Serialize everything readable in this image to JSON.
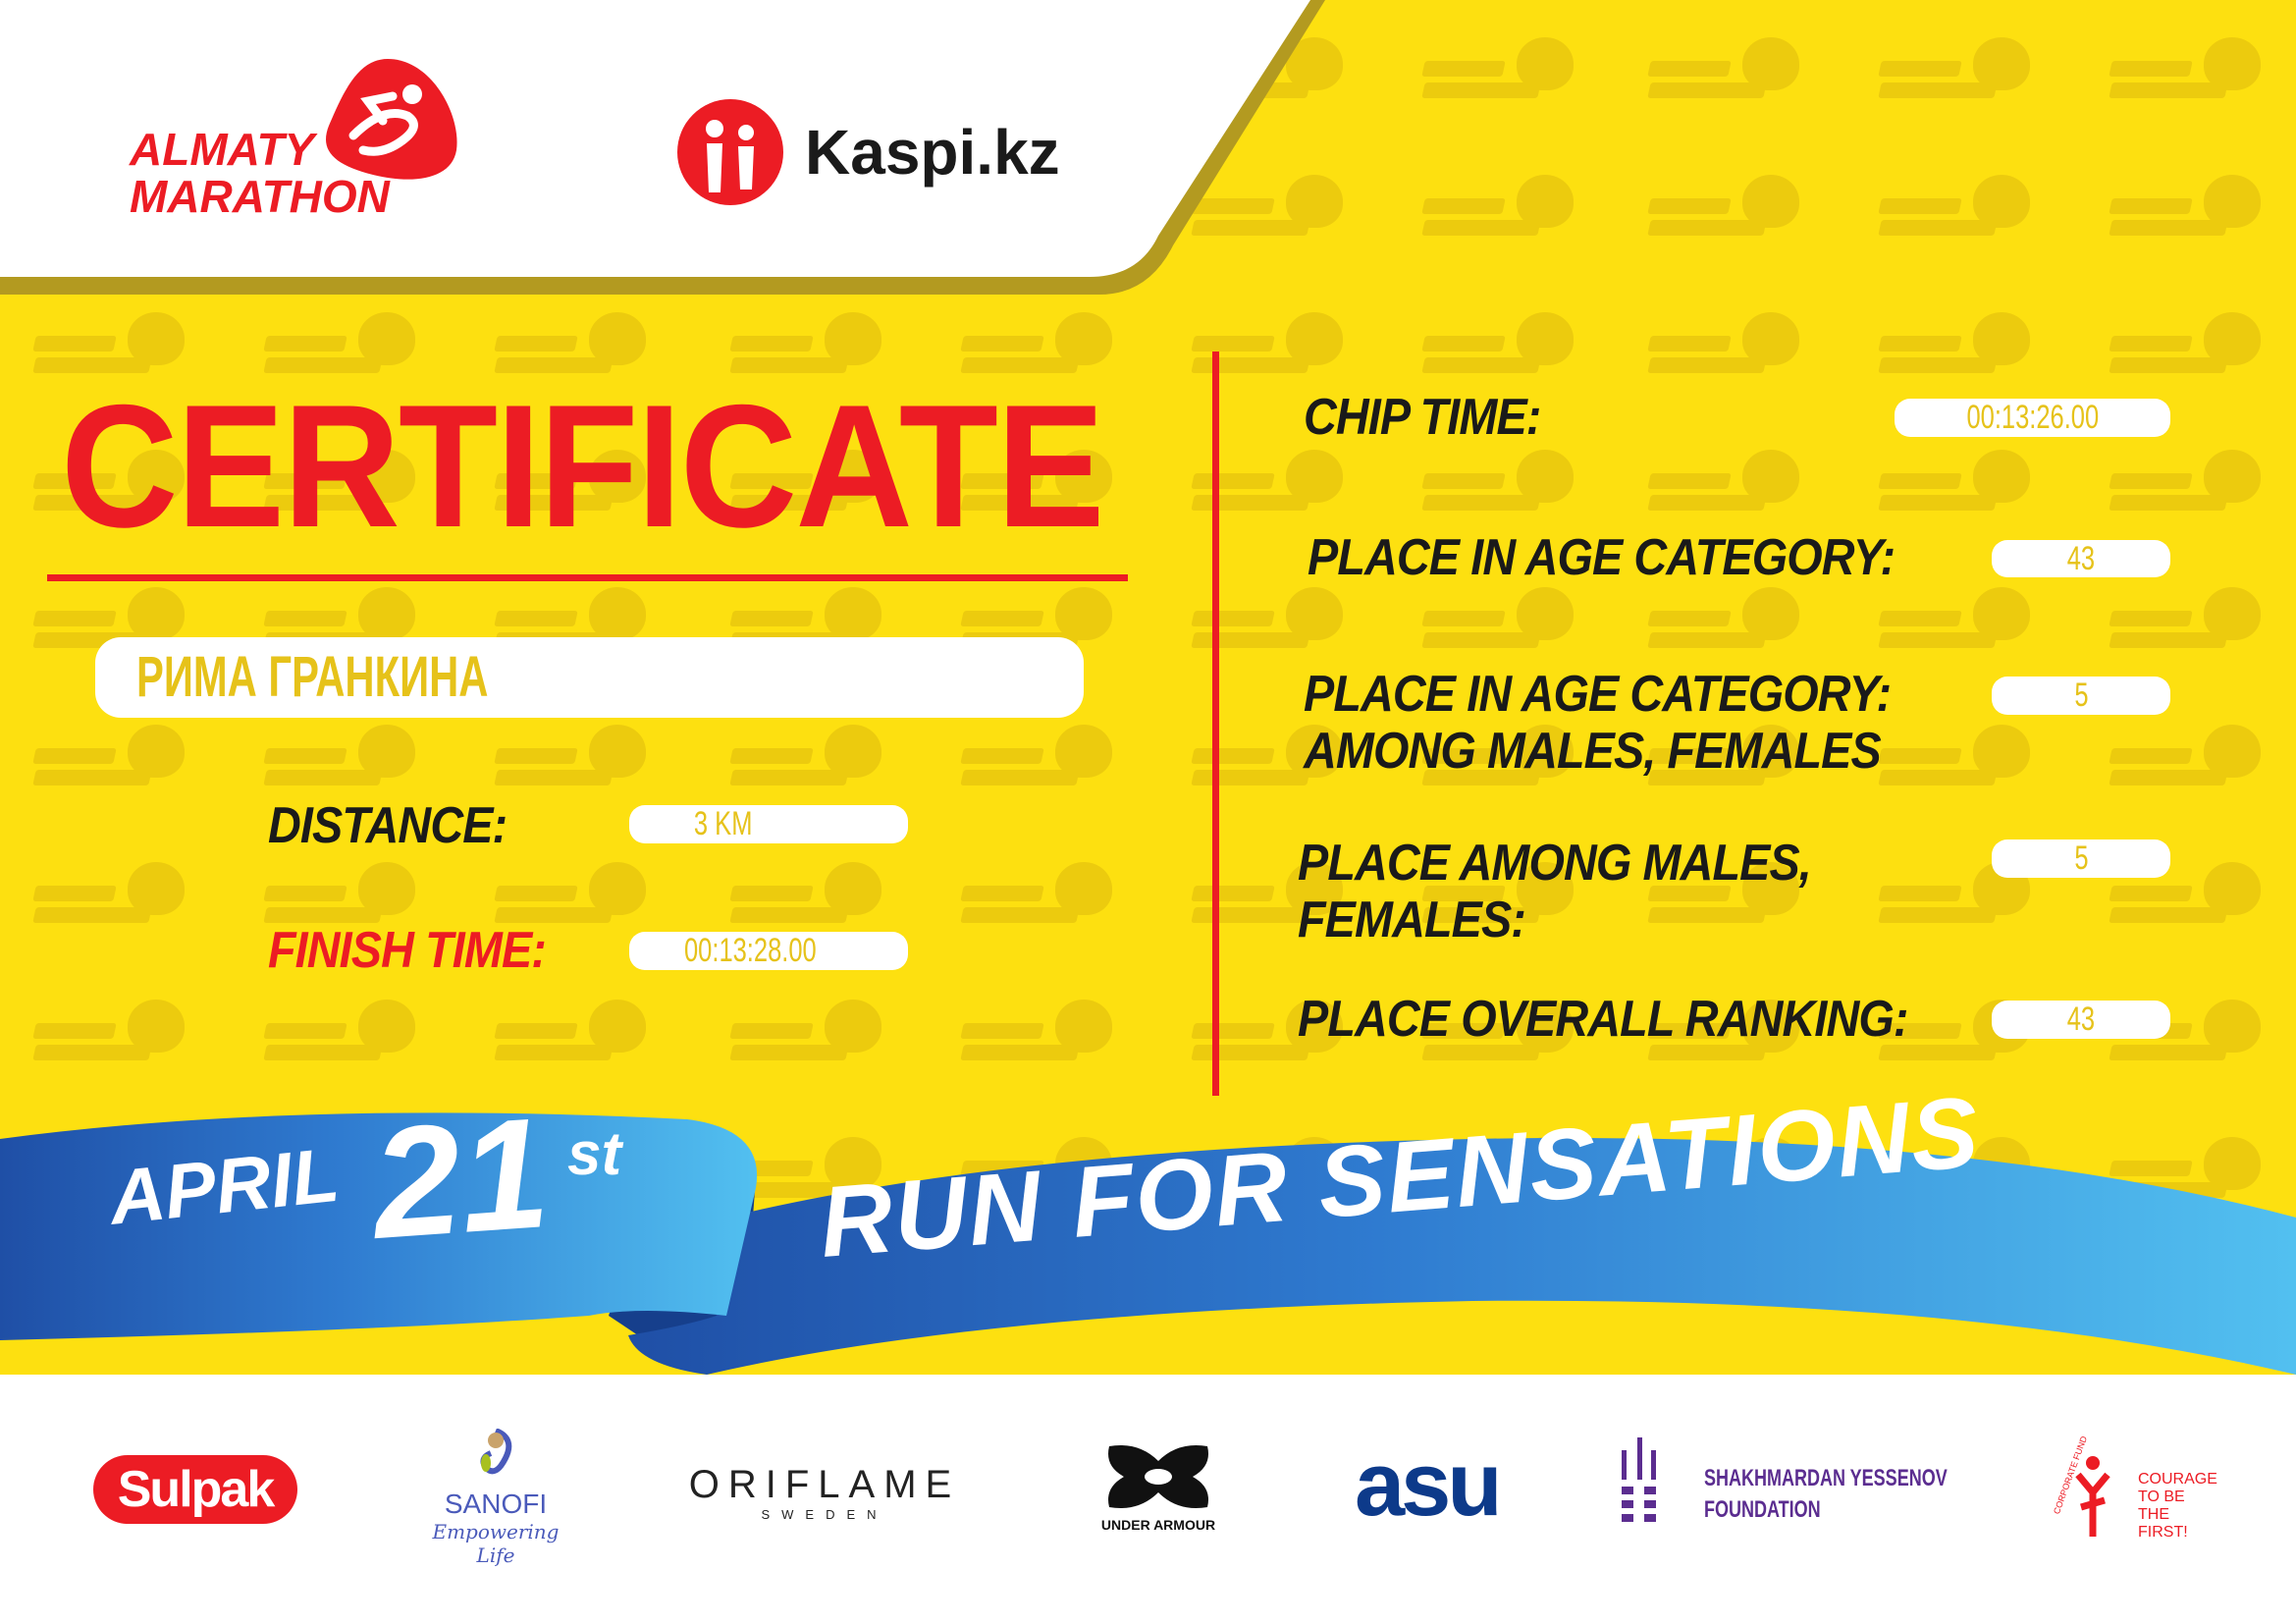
{
  "header": {
    "event_logo_line1": "ALMATY",
    "event_logo_line2": "MARATHON",
    "sponsor_name": "Kaspi.kz"
  },
  "watermark_text": [
    "ALMATY",
    "MARATHON"
  ],
  "certificate": {
    "title": "CERTIFICATE",
    "participant_name": "РИМА ГРАНКИНА",
    "distance_label": "DISTANCE:",
    "distance_value": "3 KM",
    "finish_time_label": "FINISH TIME:",
    "finish_time_value": "00:13:28.00"
  },
  "results": [
    {
      "label_lines": [
        "CHIP TIME:"
      ],
      "value": "00:13:26.00"
    },
    {
      "label_lines": [
        "PLACE IN AGE CATEGORY:"
      ],
      "value": "43"
    },
    {
      "label_lines": [
        "PLACE IN AGE CATEGORY:",
        "AMONG MALES, FEMALES"
      ],
      "value": "5"
    },
    {
      "label_lines": [
        "PLACE AMONG MALES,",
        "FEMALES:"
      ],
      "value": "5"
    },
    {
      "label_lines": [
        "PLACE OVERALL RANKING:"
      ],
      "value": "43"
    }
  ],
  "banner": {
    "month": "APRIL",
    "day": "21",
    "suffix": "st",
    "slogan": "RUN FOR SENSATIONS"
  },
  "sponsors": {
    "sulpak": "Sulpak",
    "sanofi": "SANOFI",
    "sanofi_tagline": "Empowering Life",
    "oriflame": "ORIFLAME",
    "oriflame_sub": "SWEDEN",
    "under_armour": "UNDER ARMOUR",
    "asu": "asu",
    "yessenov_line1": "SHAKHMARDAN YESSENOV",
    "yessenov_line2": "FOUNDATION",
    "courage_arc": "CORPORATE FUND",
    "courage_line1": "COURAGE",
    "courage_line2": "TO BE",
    "courage_line3": "THE FIRST!"
  },
  "colors": {
    "yellow": "#fde010",
    "red": "#ec1c24",
    "blue": "#2a6ec7",
    "light_blue": "#4fbdf0"
  }
}
